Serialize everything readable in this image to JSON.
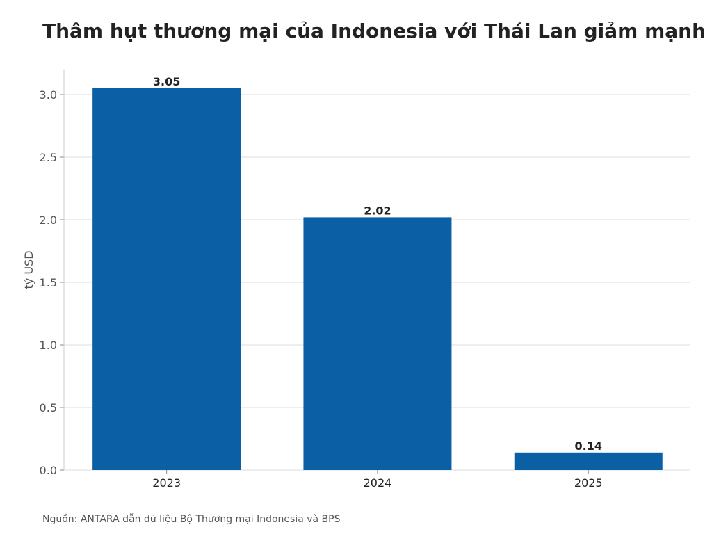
{
  "chart_data": {
    "type": "bar",
    "title": "Thâm hụt thương mại của Indonesia với Thái Lan giảm mạnh",
    "source": "Nguồn: ANTARA dẫn dữ liệu Bộ Thương mại Indonesia và BPS",
    "xlabel": "",
    "ylabel": "tỷ USD",
    "categories": [
      "2023",
      "2024",
      "2025"
    ],
    "values": [
      3.05,
      2.02,
      0.14
    ],
    "value_labels": [
      "3.05",
      "2.02",
      "0.14"
    ],
    "ylim": [
      0,
      3.2
    ],
    "yticks": [
      0.0,
      0.5,
      1.0,
      1.5,
      2.0,
      2.5,
      3.0
    ],
    "ytick_labels": [
      "0.0",
      "0.5",
      "1.0",
      "1.5",
      "2.0",
      "2.5",
      "3.0"
    ],
    "grid": true,
    "colors": {
      "bar": "#0b5fa5",
      "grid": "#dddddd",
      "axis": "#cccccc"
    }
  }
}
